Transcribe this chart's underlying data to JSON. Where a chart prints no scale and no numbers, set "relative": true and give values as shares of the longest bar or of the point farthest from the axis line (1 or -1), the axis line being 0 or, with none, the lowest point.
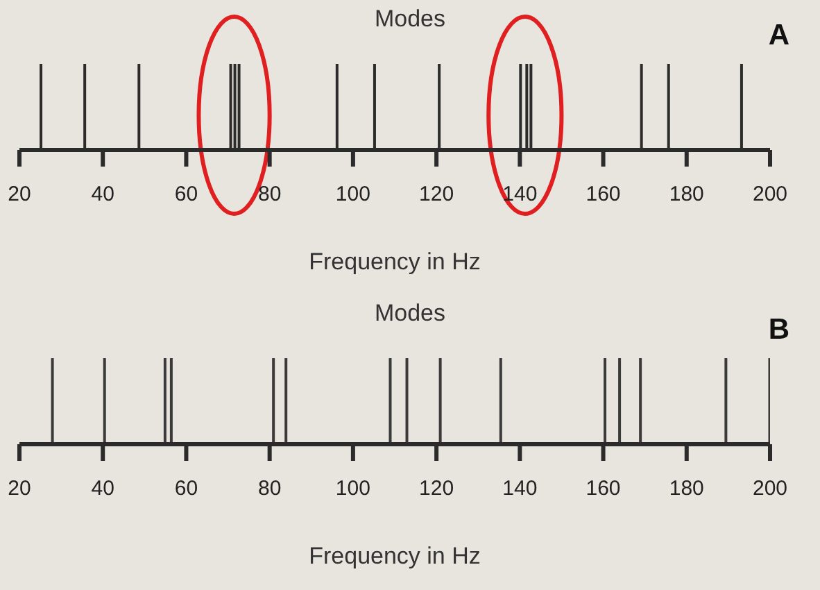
{
  "chart_data": [
    {
      "type": "bar",
      "title": "Modes",
      "xlabel": "Frequency in Hz",
      "annotations": [
        "A"
      ],
      "relative": true,
      "x": [
        25,
        35.5,
        48.5,
        70.5,
        71.5,
        72.5,
        96,
        105,
        120.5,
        140,
        141.5,
        142.5,
        169,
        175.5,
        193
      ],
      "series": [
        {
          "color": "#2b2b2b",
          "values": [
            1,
            1,
            1,
            1,
            1,
            1,
            1,
            1,
            1,
            1,
            1,
            1,
            1,
            1,
            1
          ]
        }
      ],
      "xlim": [
        20,
        200
      ],
      "xticks": [
        20,
        40,
        60,
        80,
        100,
        120,
        140,
        160,
        180,
        200
      ],
      "grid": false,
      "legend": false
    },
    {
      "type": "bar",
      "title": "Modes",
      "xlabel": "Frequency in Hz",
      "annotations": [
        "B"
      ],
      "relative": true,
      "x": [
        28,
        40.5,
        55,
        56.5,
        81,
        84,
        109,
        113,
        121,
        135.5,
        160.5,
        164,
        169,
        189.5,
        200
      ],
      "series": [
        {
          "color": "#3a3a3a",
          "values": [
            1,
            1,
            1,
            1,
            1,
            1,
            1,
            1,
            1,
            1,
            1,
            1,
            1,
            1,
            1
          ]
        }
      ],
      "xlim": [
        20,
        200
      ],
      "xticks": [
        20,
        40,
        60,
        80,
        100,
        120,
        140,
        160,
        180,
        200
      ],
      "grid": false,
      "legend": false
    }
  ]
}
